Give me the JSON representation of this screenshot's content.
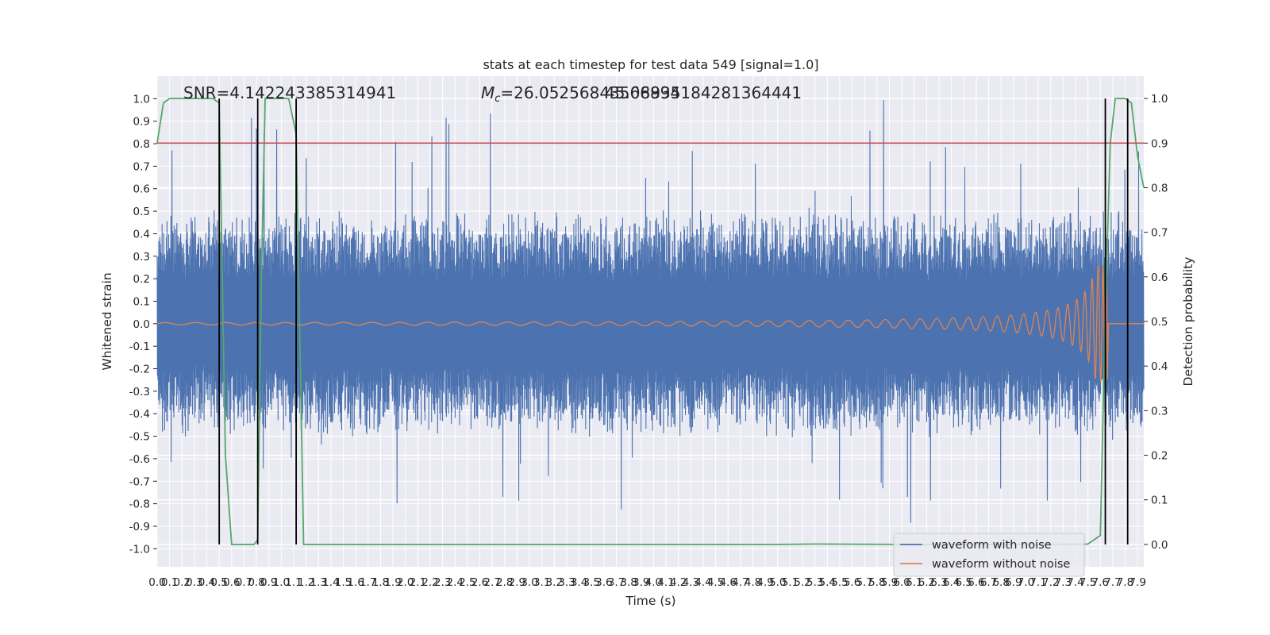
{
  "chart_data": {
    "type": "line",
    "title": "stats at each timestep for test data 549 [signal=1.0]",
    "xlabel": "Time (s)",
    "ylabel_left": "Whitened strain",
    "ylabel_right": "Detection probability",
    "xlim": [
      0.0,
      7.95
    ],
    "ylim_left": [
      -1.08,
      1.1
    ],
    "ylim_right": [
      -0.05,
      1.05
    ],
    "x_ticks": [
      "0.0",
      "0.1",
      "0.2",
      "0.3",
      "0.4",
      "0.5",
      "0.6",
      "0.7",
      "0.8",
      "0.9",
      "1.0",
      "1.1",
      "1.2",
      "1.3",
      "1.4",
      "1.5",
      "1.6",
      "1.7",
      "1.8",
      "1.9",
      "2.0",
      "2.1",
      "2.2",
      "2.3",
      "2.4",
      "2.5",
      "2.6",
      "2.7",
      "2.8",
      "2.9",
      "3.0",
      "3.1",
      "3.2",
      "3.3",
      "3.4",
      "3.5",
      "3.6",
      "3.7",
      "3.8",
      "3.9",
      "4.0",
      "4.1",
      "4.2",
      "4.3",
      "4.4",
      "4.5",
      "4.6",
      "4.7",
      "4.8",
      "4.9",
      "5.0",
      "5.1",
      "5.2",
      "5.3",
      "5.4",
      "5.5",
      "5.6",
      "5.7",
      "5.8",
      "5.9",
      "6.0",
      "6.1",
      "6.2",
      "6.3",
      "6.4",
      "6.5",
      "6.6",
      "6.7",
      "6.8",
      "6.9",
      "7.0",
      "7.1",
      "7.2",
      "7.3",
      "7.4",
      "7.5",
      "7.6",
      "7.7",
      "7.8",
      "7.9"
    ],
    "y_ticks_left": [
      "1.0",
      "0.9",
      "0.8",
      "0.7",
      "0.6",
      "0.5",
      "0.4",
      "0.3",
      "0.2",
      "0.1",
      "0.0",
      "-0.1",
      "-0.2",
      "-0.3",
      "-0.4",
      "-0.5",
      "-0.6",
      "-0.7",
      "-0.8",
      "-0.9",
      "-1.0"
    ],
    "y_ticks_right": [
      "1.0",
      "0.9",
      "0.8",
      "0.7",
      "0.6",
      "0.5",
      "0.4",
      "0.3",
      "0.2",
      "0.1",
      "0.0"
    ],
    "annotations": {
      "snr": "SNR=4.142243385314941",
      "mc_prefix": "M",
      "mc_sub": "c",
      "mc_value": "=26.05256843566894",
      "mc_overlap": "45.08935184281364441"
    },
    "threshold_right": 0.9,
    "vertical_lines_x": [
      0.5,
      0.81,
      1.12,
      7.64,
      7.82
    ],
    "vertical_lines_range_right": [
      0.0,
      1.0
    ],
    "detection_probability": {
      "x": [
        0.0,
        0.05,
        0.1,
        0.2,
        0.3,
        0.4,
        0.45,
        0.5,
        0.55,
        0.6,
        0.7,
        0.78,
        0.81,
        0.84,
        0.87,
        0.9,
        1.0,
        1.06,
        1.12,
        1.18,
        1.3,
        2.0,
        3.0,
        4.0,
        5.0,
        5.3,
        6.0,
        7.0,
        7.5,
        7.6,
        7.64,
        7.68,
        7.72,
        7.8,
        7.85,
        7.9,
        7.95
      ],
      "y": [
        0.9,
        0.99,
        1.0,
        1.0,
        1.0,
        1.0,
        1.0,
        0.99,
        0.2,
        0.0,
        0.0,
        0.0,
        0.01,
        0.6,
        1.0,
        1.0,
        1.0,
        1.0,
        0.92,
        0.0,
        0.0,
        0.0,
        0.0,
        0.0,
        0.0,
        0.001,
        0.0,
        0.0,
        0.001,
        0.02,
        0.52,
        0.9,
        1.0,
        1.0,
        0.99,
        0.87,
        0.8
      ]
    },
    "noise_envelope": {
      "typical_amplitude": 0.45,
      "peak_max": 1.0,
      "peak_min": -0.93,
      "x_start": 0.0,
      "x_end": 7.95
    },
    "clean_waveform": {
      "merger_x": 7.64,
      "peak_amplitude": 0.26,
      "start_amplitude": 0.005,
      "end_x": 7.66
    },
    "legend": {
      "placement": "lower-right",
      "entries": [
        "waveform with noise",
        "waveform without noise"
      ]
    },
    "colors": {
      "noisy": "#4c72b0",
      "clean": "#dd8452",
      "probability": "#55a868",
      "threshold": "#c44e52",
      "marker": "#000000",
      "background": "#eaeaf2",
      "grid": "#ffffff"
    },
    "grid": true
  }
}
